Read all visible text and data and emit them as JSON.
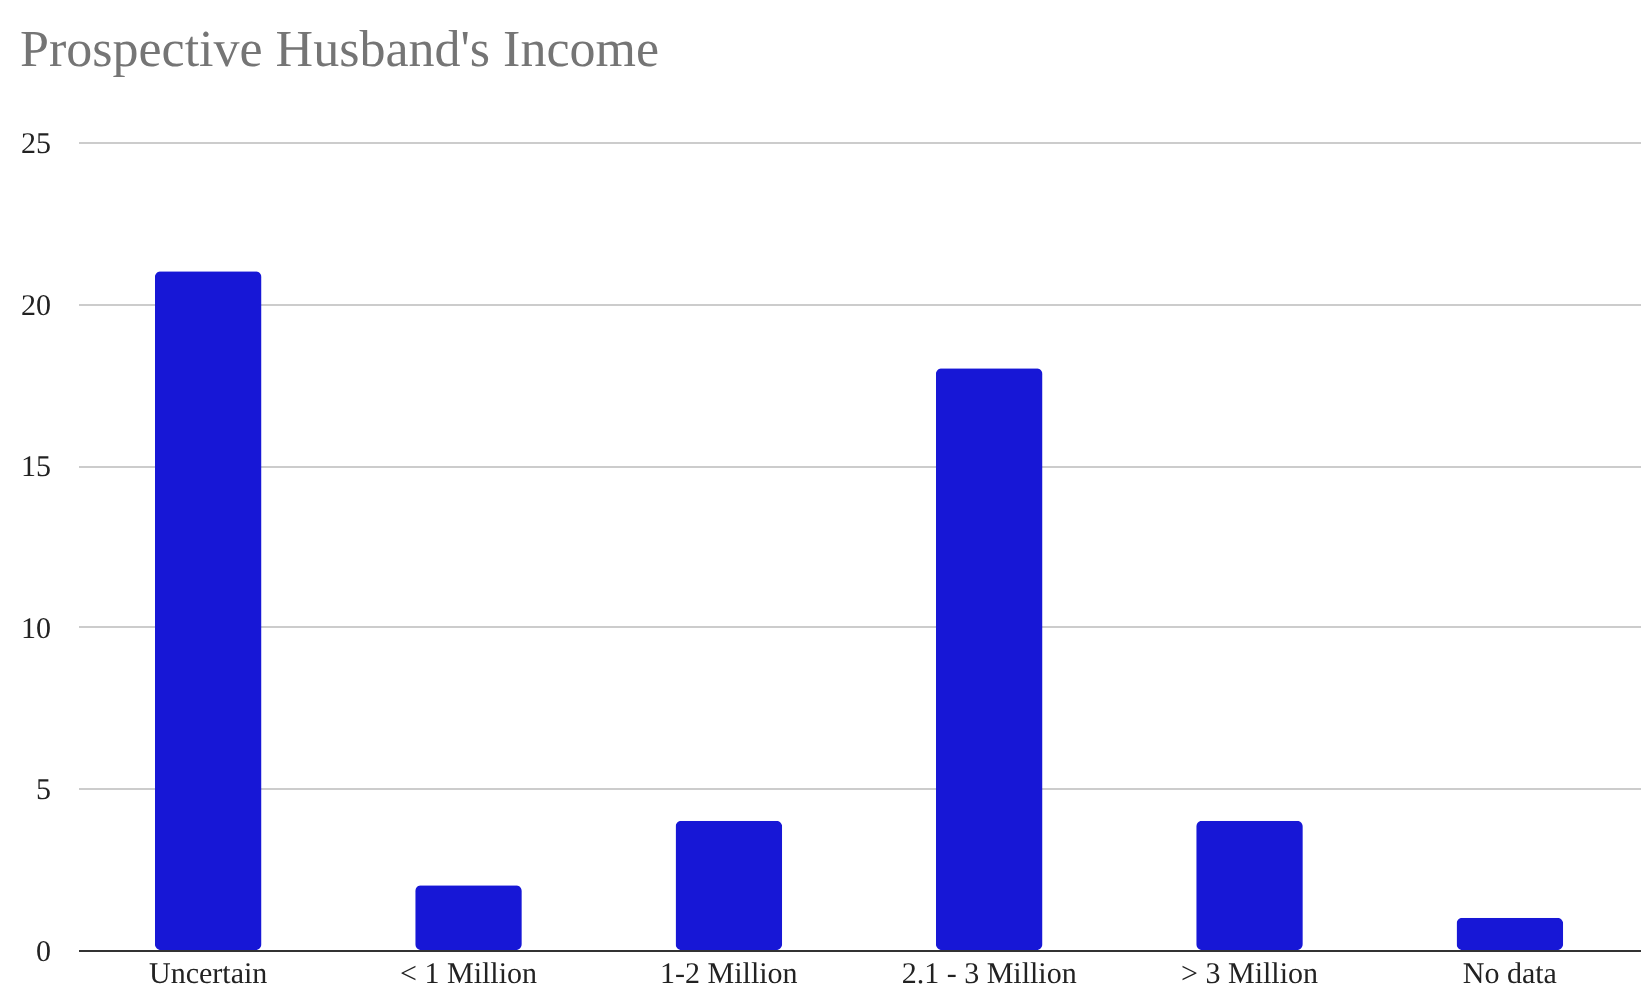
{
  "chart_data": {
    "type": "bar",
    "title": "Prospective Husband's Income",
    "categories": [
      "Uncertain",
      "< 1 Million",
      "1-2 Million",
      "2.1 - 3 Million",
      "> 3 Million",
      "No data"
    ],
    "values": [
      21,
      2,
      4,
      18,
      4,
      1
    ],
    "color": "#1717d6",
    "ylim": [
      0,
      25
    ],
    "yticks": [
      0,
      5,
      10,
      15,
      20,
      25
    ],
    "grid": "y"
  }
}
